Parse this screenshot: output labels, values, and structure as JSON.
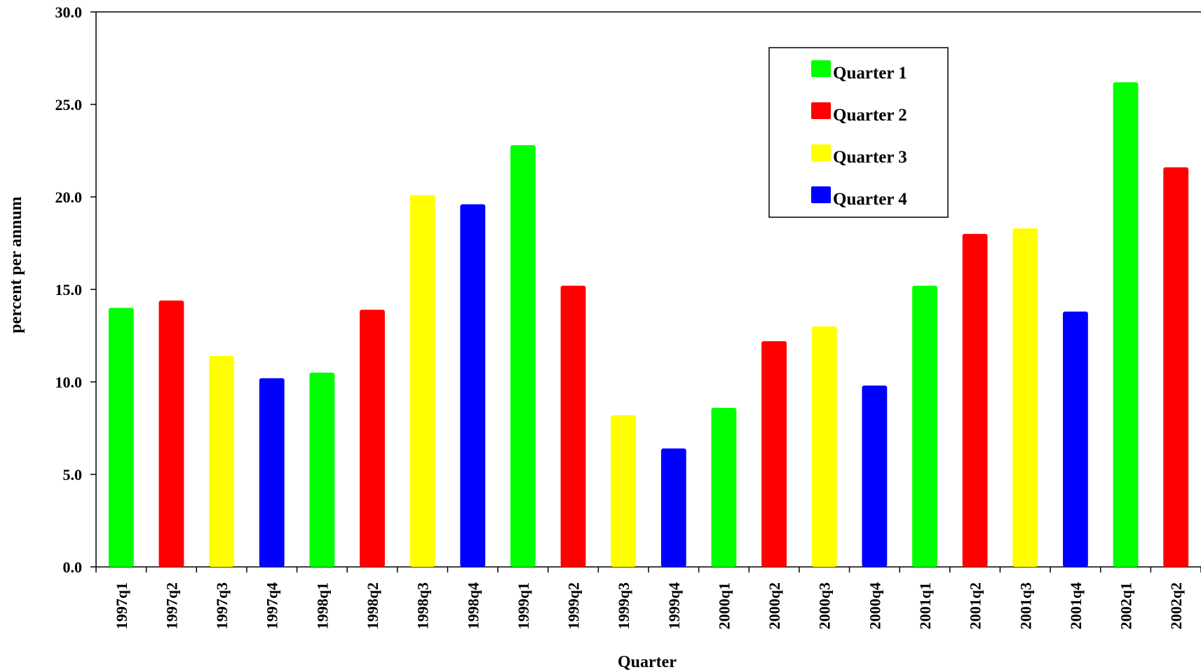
{
  "chart_data": {
    "type": "bar",
    "title": "",
    "xlabel": "Quarter",
    "ylabel": "percent per annum",
    "ylim": [
      0,
      30
    ],
    "yticks": [
      "0.0",
      "5.0",
      "10.0",
      "15.0",
      "20.0",
      "25.0",
      "30.0"
    ],
    "categories": [
      "1997q1",
      "1997q2",
      "1997q3",
      "1997q4",
      "1998q1",
      "1998q2",
      "1998q3",
      "1998q4",
      "1999q1",
      "1999q2",
      "1999q3",
      "1999q4",
      "2000q1",
      "2000q2",
      "2000q3",
      "2000q4",
      "2001q1",
      "2001q2",
      "2001q3",
      "2001q4",
      "2002q1",
      "2002q2"
    ],
    "values": [
      14.0,
      14.4,
      11.4,
      10.2,
      10.5,
      13.9,
      20.1,
      19.6,
      22.8,
      15.2,
      8.2,
      6.4,
      8.6,
      12.2,
      13.0,
      9.8,
      15.2,
      18.0,
      18.3,
      13.8,
      26.2,
      21.6
    ],
    "bar_quarter": [
      1,
      2,
      3,
      4,
      1,
      2,
      3,
      4,
      1,
      2,
      3,
      4,
      1,
      2,
      3,
      4,
      1,
      2,
      3,
      4,
      1,
      2
    ],
    "grid": false,
    "legend_position": "top-right",
    "series": [
      {
        "name": "Quarter 1",
        "color": "#00ff00"
      },
      {
        "name": "Quarter 2",
        "color": "#ff0000"
      },
      {
        "name": "Quarter 3",
        "color": "#ffff00"
      },
      {
        "name": "Quarter 4",
        "color": "#0000ff"
      }
    ]
  }
}
